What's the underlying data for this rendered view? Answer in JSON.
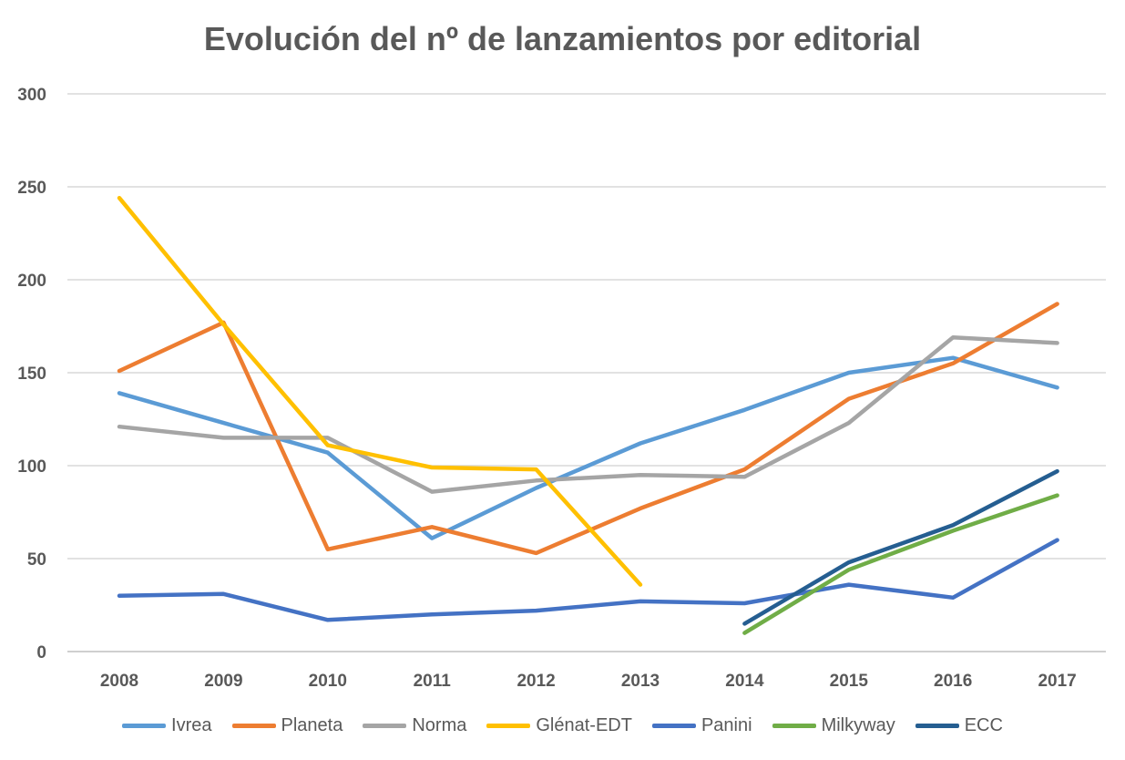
{
  "chart_data": {
    "type": "line",
    "title": "Evolución del nº de lanzamientos por editorial",
    "xlabel": "",
    "ylabel": "",
    "ylim": [
      0,
      300
    ],
    "yticks": [
      0,
      50,
      100,
      150,
      200,
      250,
      300
    ],
    "categories": [
      "2008",
      "2009",
      "2010",
      "2011",
      "2012",
      "2013",
      "2014",
      "2015",
      "2016",
      "2017"
    ],
    "grid": true,
    "legend_position": "bottom",
    "series": [
      {
        "name": "Ivrea",
        "color": "#5B9BD5",
        "values": [
          139,
          123,
          107,
          61,
          88,
          112,
          130,
          150,
          158,
          142
        ]
      },
      {
        "name": "Planeta",
        "color": "#ED7D31",
        "values": [
          151,
          177,
          55,
          67,
          53,
          77,
          98,
          136,
          155,
          187
        ]
      },
      {
        "name": "Norma",
        "color": "#A5A5A5",
        "values": [
          121,
          115,
          115,
          86,
          92,
          95,
          94,
          123,
          169,
          166
        ]
      },
      {
        "name": "Glénat-EDT",
        "color": "#FFC000",
        "values": [
          244,
          176,
          111,
          99,
          98,
          36,
          null,
          null,
          null,
          null
        ]
      },
      {
        "name": "Panini",
        "color": "#4472C4",
        "values": [
          30,
          31,
          17,
          20,
          22,
          27,
          26,
          36,
          29,
          60
        ]
      },
      {
        "name": "Milkyway",
        "color": "#70AD47",
        "values": [
          null,
          null,
          null,
          null,
          null,
          null,
          10,
          44,
          65,
          84
        ]
      },
      {
        "name": "ECC",
        "color": "#255E91",
        "values": [
          null,
          null,
          null,
          null,
          null,
          null,
          15,
          48,
          68,
          97
        ]
      }
    ]
  }
}
